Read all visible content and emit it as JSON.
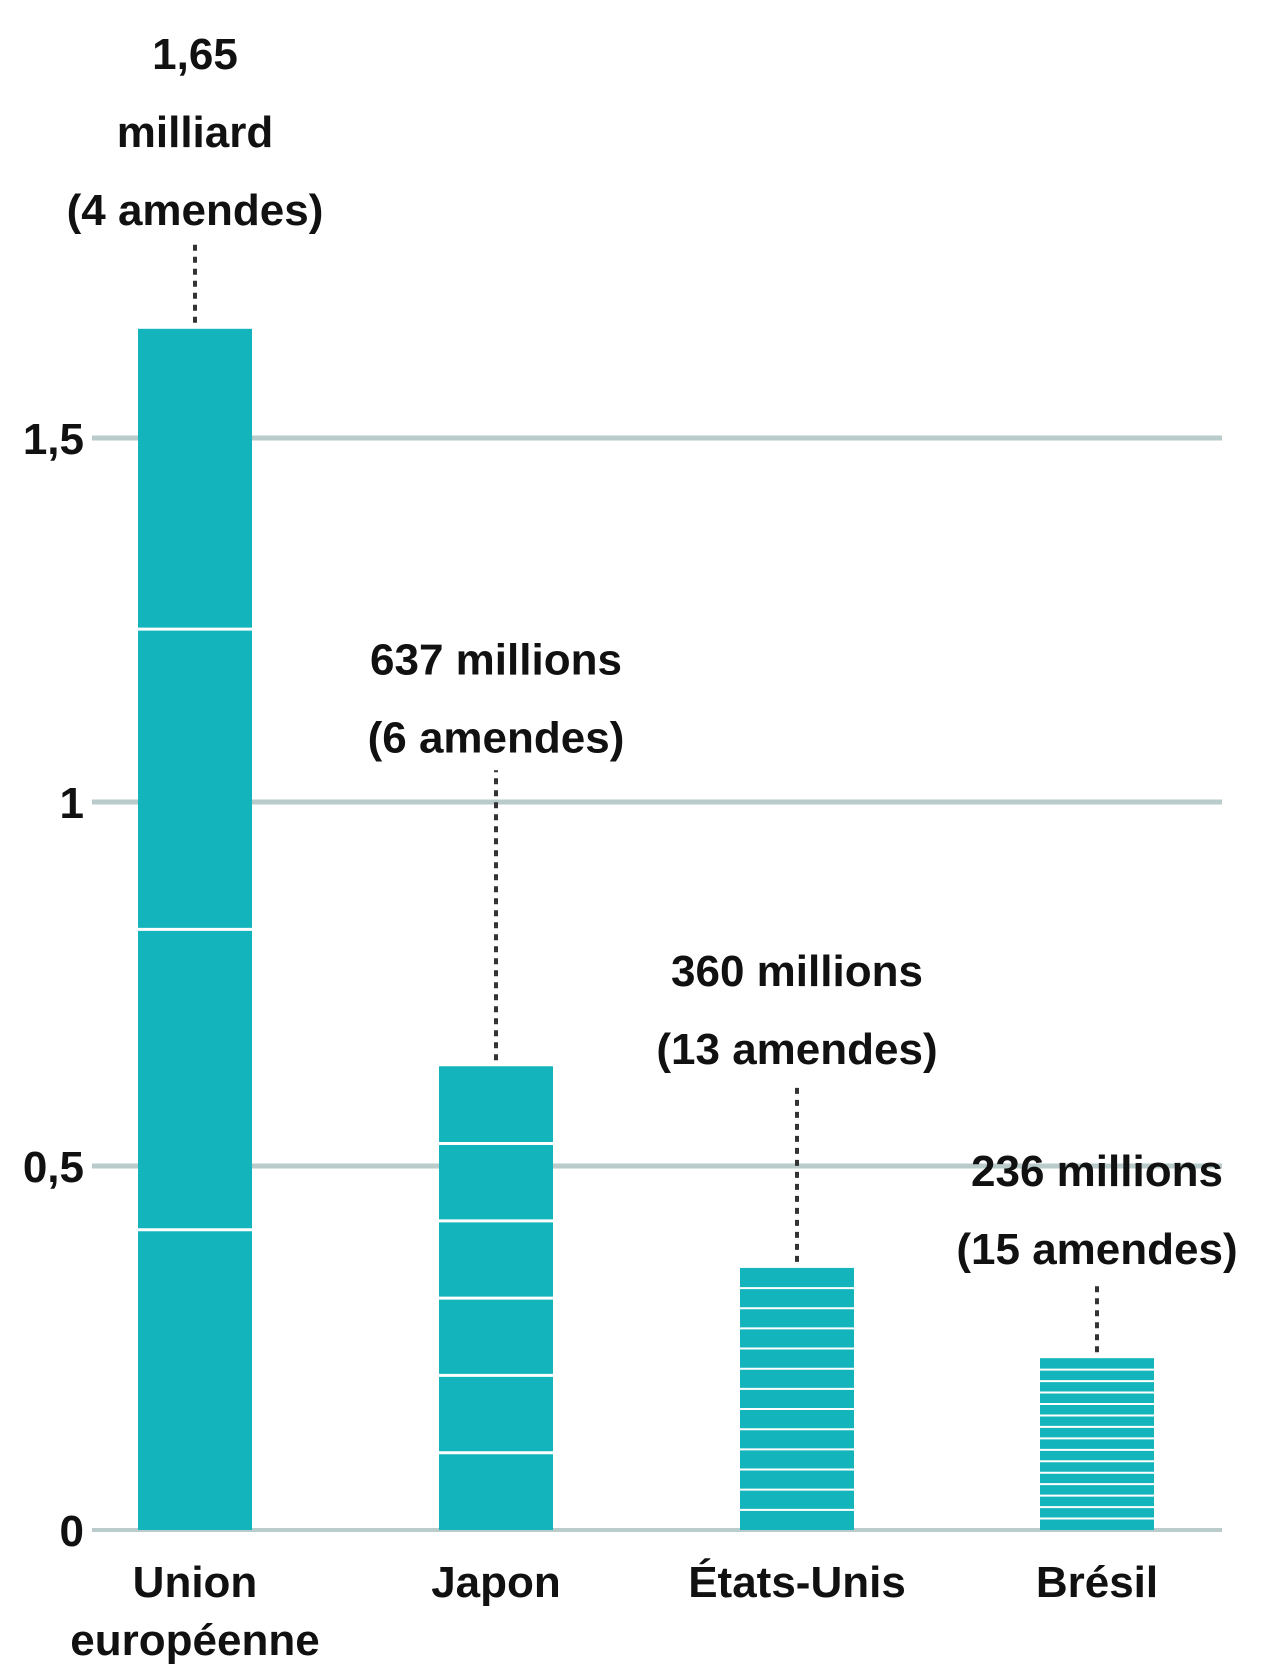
{
  "chart_data": {
    "type": "bar",
    "title": "",
    "xlabel": "",
    "ylabel": "",
    "ylim": [
      0,
      1.65
    ],
    "yticks": [
      {
        "value": 0,
        "label": "0"
      },
      {
        "value": 0.5,
        "label": "0,5"
      },
      {
        "value": 1,
        "label": "1"
      },
      {
        "value": 1.5,
        "label": "1,5"
      }
    ],
    "grid": true,
    "colors": {
      "bar": "#14b4bc",
      "grid": "#b9cbcb",
      "separator": "#ffffff",
      "leader": "#333333"
    },
    "categories": [
      "Union européenne",
      "Japon",
      "États-Unis",
      "Brésil"
    ],
    "category_labels": [
      [
        "Union",
        "européenne"
      ],
      [
        "Japon"
      ],
      [
        "États-Unis"
      ],
      [
        "Brésil"
      ]
    ],
    "values": [
      1.65,
      0.637,
      0.36,
      0.236
    ],
    "segments": [
      4,
      6,
      13,
      15
    ],
    "value_labels": [
      [
        "1,65",
        "milliard",
        "(4 amendes)"
      ],
      [
        "637 millions",
        "(6 amendes)"
      ],
      [
        "360 millions",
        "(13 amendes)"
      ],
      [
        "236 millions",
        "(15 amendes)"
      ]
    ]
  }
}
